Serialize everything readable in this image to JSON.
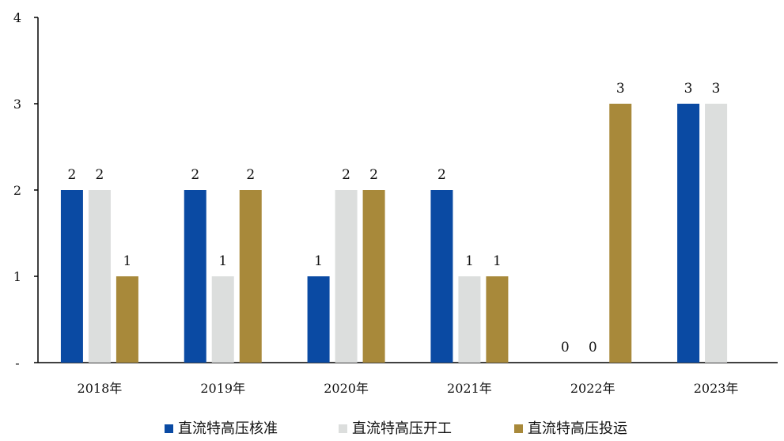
{
  "chart_data": {
    "type": "bar",
    "categories": [
      "2018年",
      "2019年",
      "2020年",
      "2021年",
      "2022年",
      "2023年"
    ],
    "series": [
      {
        "name": "直流特高压核准",
        "color": "#0a4aa3",
        "values": [
          2,
          2,
          1,
          2,
          0,
          3
        ]
      },
      {
        "name": "直流特高压开工",
        "color": "#dcdedd",
        "values": [
          2,
          1,
          2,
          1,
          0,
          3
        ]
      },
      {
        "name": "直流特高压投运",
        "color": "#a8893a",
        "values": [
          1,
          2,
          2,
          1,
          3,
          null
        ]
      }
    ],
    "data_labels": [
      [
        "2",
        "2",
        "1",
        "2",
        "0",
        "3"
      ],
      [
        "2",
        "1",
        "2",
        "1",
        "0",
        "3"
      ],
      [
        "1",
        "2",
        "2",
        "1",
        "3",
        ""
      ]
    ],
    "y_ticks": [
      "-",
      "1",
      "2",
      "3",
      "4"
    ],
    "ylim": [
      0,
      4
    ],
    "title": "",
    "xlabel": "",
    "ylabel": "",
    "grid": false,
    "legend_position": "bottom"
  }
}
